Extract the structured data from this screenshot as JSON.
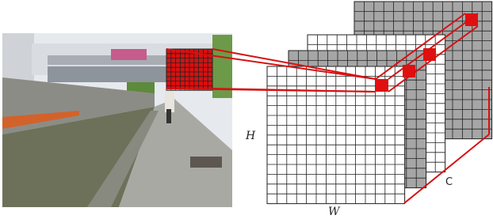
{
  "labels": {
    "height": "H",
    "width": "W",
    "channels": "C"
  }
}
